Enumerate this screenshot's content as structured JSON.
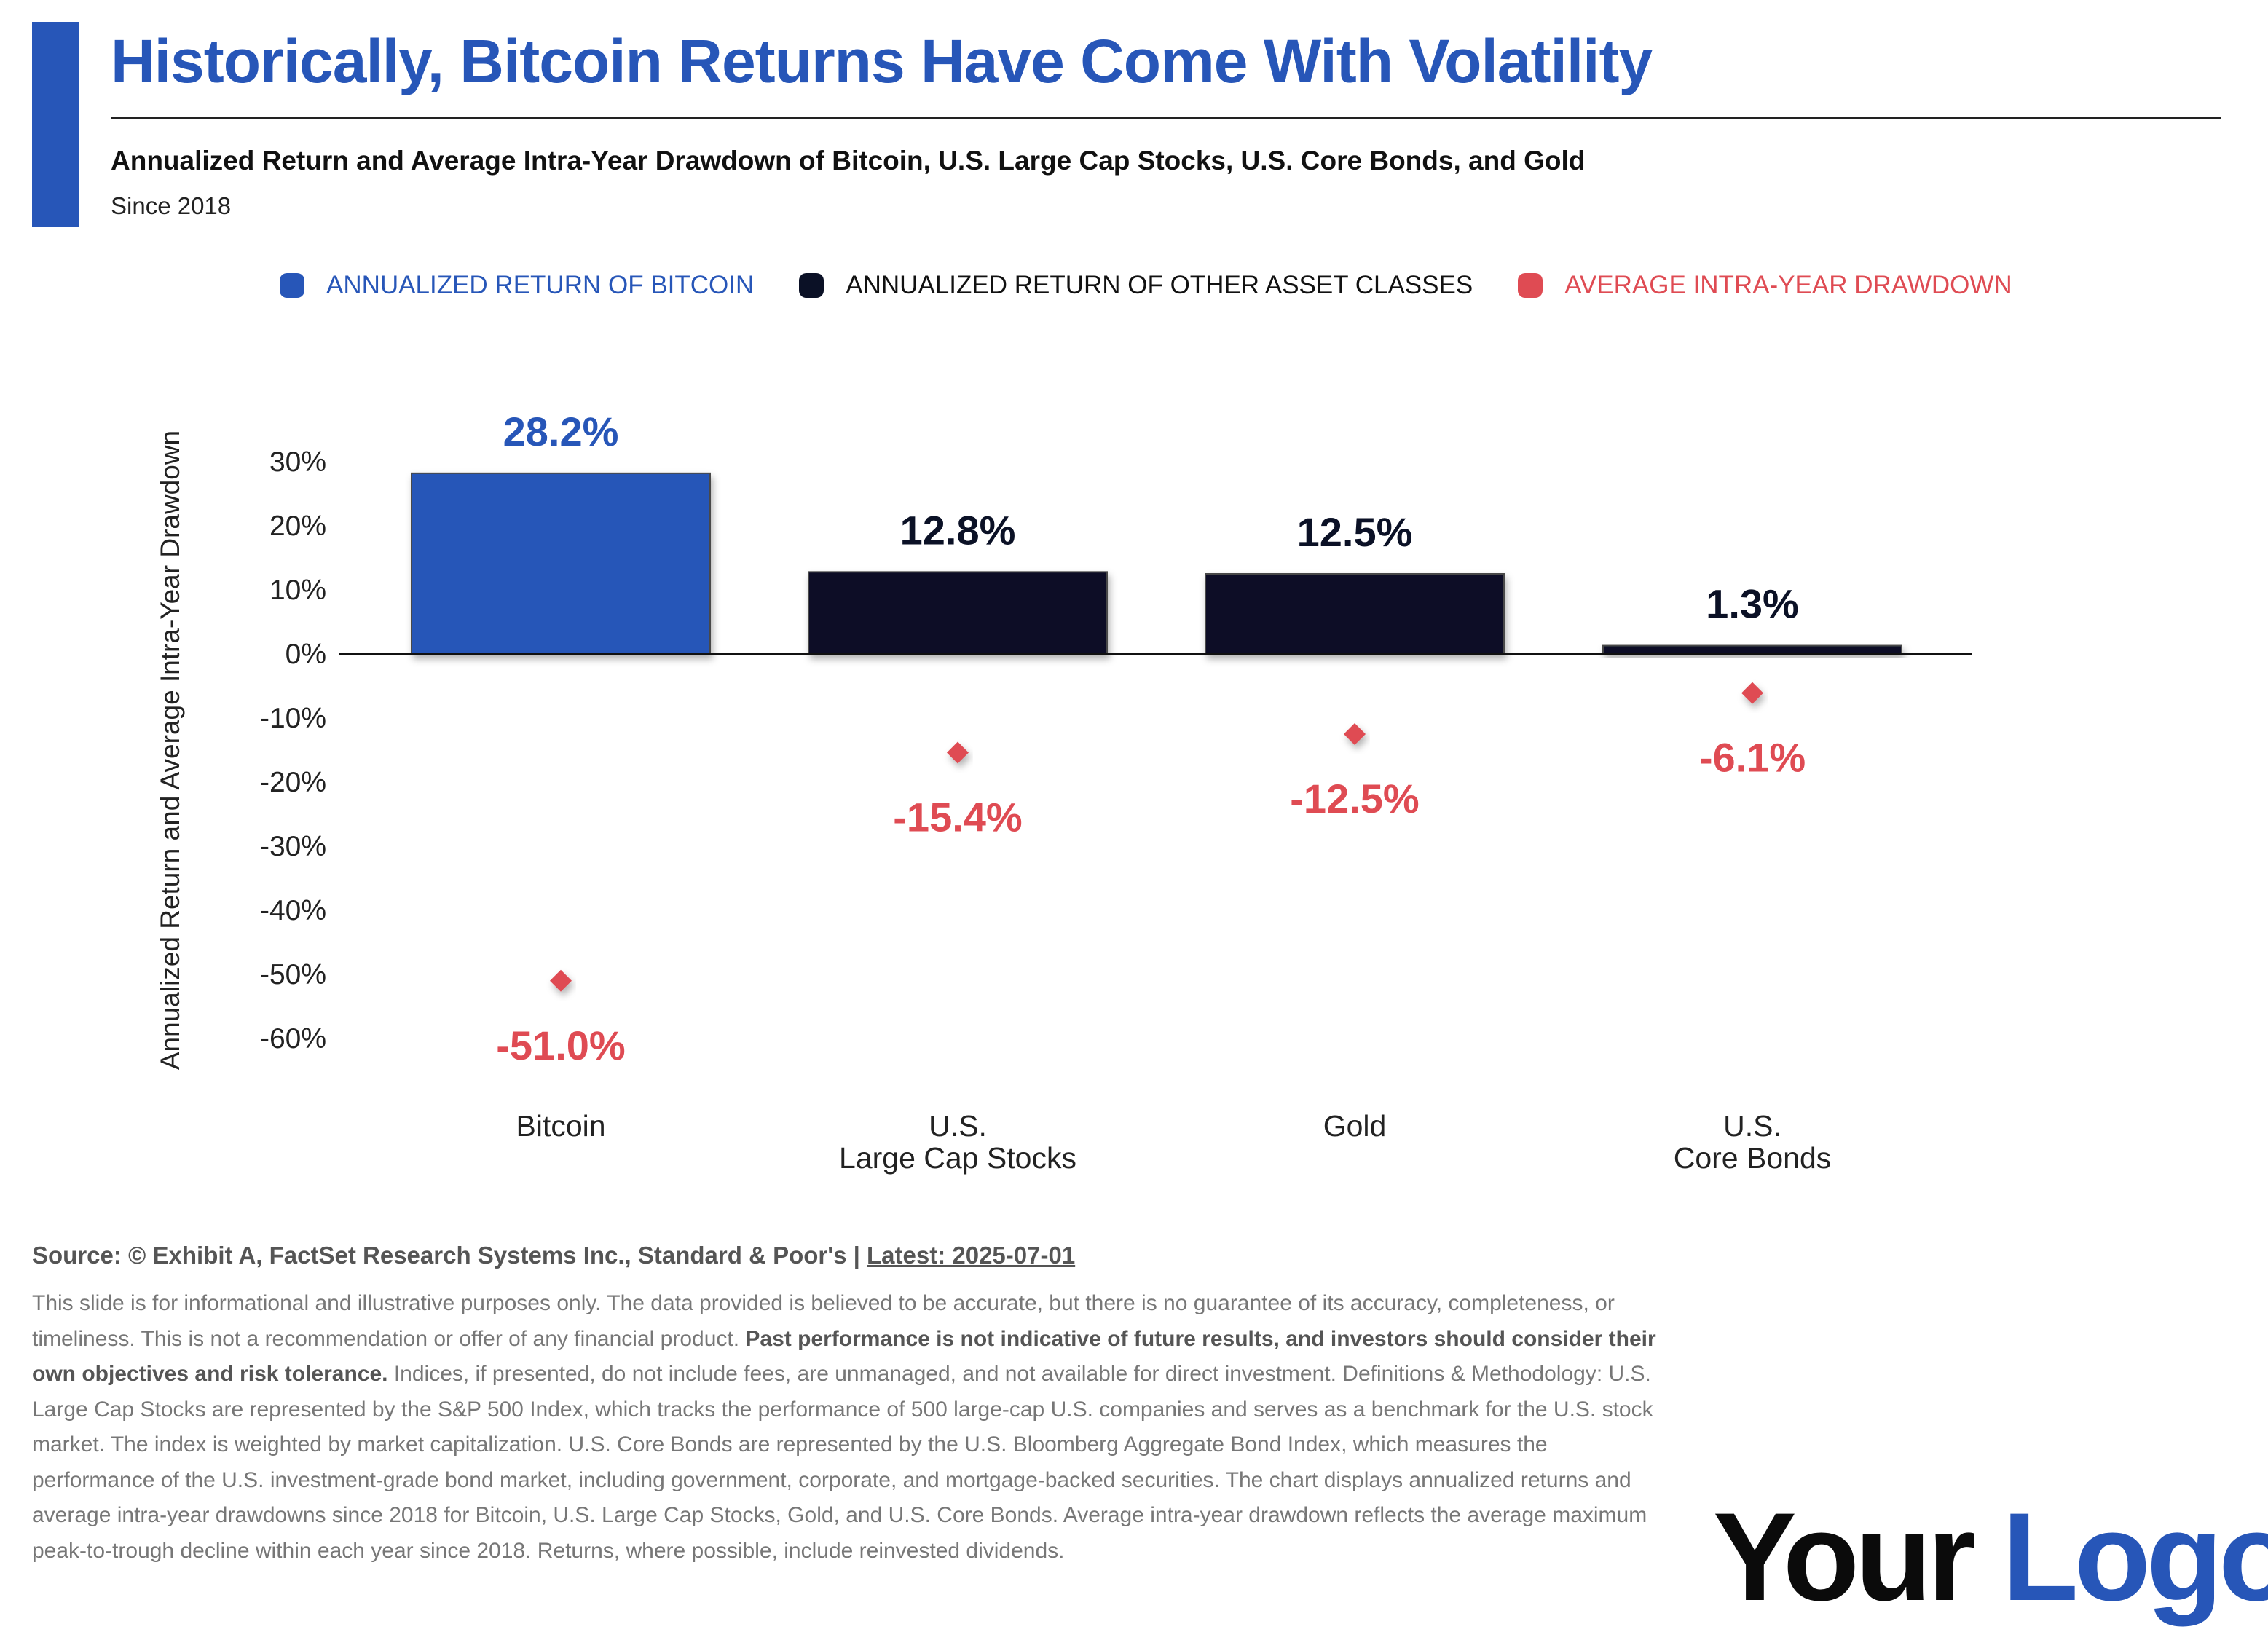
{
  "title": "Historically, Bitcoin Returns Have Come With Volatility",
  "subtitle": "Annualized Return and Average Intra-Year Drawdown of Bitcoin, U.S. Large Cap Stocks, U.S. Core Bonds, and Gold",
  "since": "Since 2018",
  "legend": [
    {
      "label": "ANNUALIZED RETURN OF BITCOIN",
      "color": "#2756b8"
    },
    {
      "label": "ANNUALIZED RETURN OF OTHER ASSET CLASSES",
      "color": "#0b1126"
    },
    {
      "label": "AVERAGE INTRA-YEAR DRAWDOWN",
      "color": "#df4b53"
    }
  ],
  "chart_data": {
    "type": "bar",
    "ylabel": "Annualized Return and Average Intra-Year Drawdown",
    "ylim": [
      -60,
      30
    ],
    "yticks": [
      30,
      20,
      10,
      0,
      -10,
      -20,
      -30,
      -40,
      -50,
      -60
    ],
    "ytick_labels": [
      "30%",
      "20%",
      "10%",
      "0%",
      "-10%",
      "-20%",
      "-30%",
      "-40%",
      "-50%",
      "-60%"
    ],
    "categories": [
      [
        "Bitcoin"
      ],
      [
        "U.S.",
        "Large Cap Stocks"
      ],
      [
        "Gold"
      ],
      [
        "U.S.",
        "Core Bonds"
      ]
    ],
    "series": [
      {
        "name": "ANNUALIZED RETURN",
        "values": [
          28.2,
          12.8,
          12.5,
          1.3
        ],
        "labels": [
          "28.2%",
          "12.8%",
          "12.5%",
          "1.3%"
        ],
        "colors": [
          "#2756b8",
          "#0b1126",
          "#0b1126",
          "#0b1126"
        ]
      },
      {
        "name": "AVERAGE INTRA-YEAR DRAWDOWN",
        "values": [
          -51.0,
          -15.4,
          -12.5,
          -6.1
        ],
        "labels": [
          "-51.0%",
          "-15.4%",
          "-12.5%",
          "-6.1%"
        ],
        "color": "#df4b53"
      }
    ],
    "grid": false,
    "legend_position": "top"
  },
  "source": {
    "text": "Source: © Exhibit A, FactSet Research Systems Inc., Standard & Poor's | ",
    "latest": "Latest: 2025-07-01"
  },
  "disclaimer": {
    "part1": "This slide is for informational and illustrative purposes only. The data provided is believed to be accurate, but there is no guarantee of its accuracy, completeness, or timeliness. This is not a recommendation or offer of any financial product. ",
    "bold": "Past performance is not indicative of future results, and investors should consider their own objectives and risk tolerance.",
    "part2": " Indices, if presented, do not include fees, are unmanaged, and not available for direct investment. Definitions & Methodology: U.S. Large Cap Stocks are represented by the S&P 500 Index, which tracks the performance of 500 large-cap U.S. companies and serves as a benchmark for the U.S. stock market. The index is weighted by market capitalization. U.S. Core Bonds are represented by the U.S. Bloomberg Aggregate Bond Index, which measures the performance of the U.S. investment-grade bond market, including government, corporate, and mortgage-backed securities. The chart displays annualized returns and average intra-year drawdowns since 2018 for Bitcoin, U.S. Large Cap Stocks, Gold, and U.S. Core Bonds. Average intra-year drawdown reflects the average maximum peak-to-trough decline within each year since 2018. Returns, where possible, include reinvested dividends."
  },
  "logo": {
    "word1": "Your",
    "word2": "Logo."
  }
}
